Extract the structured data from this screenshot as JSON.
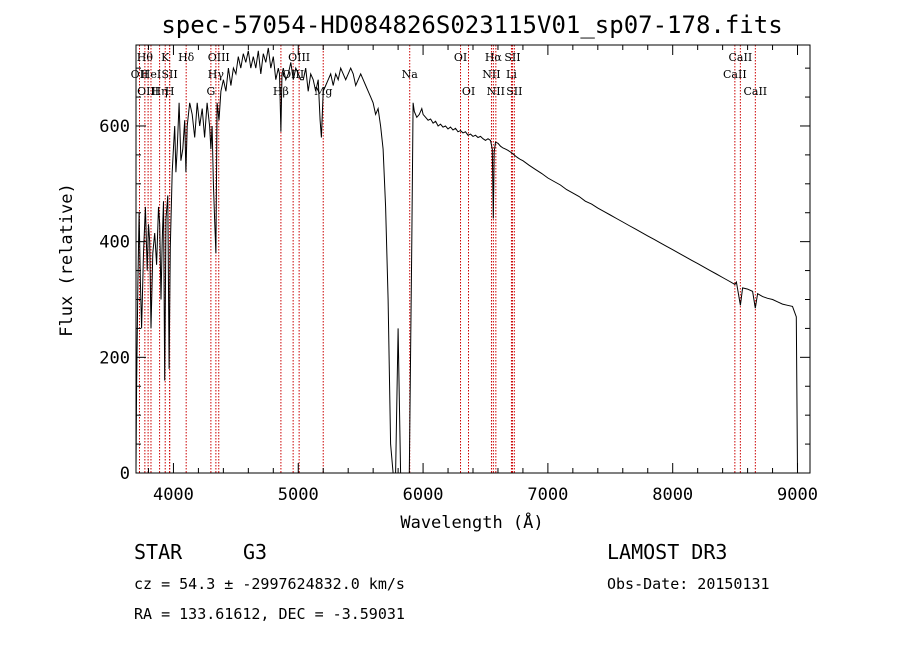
{
  "chart_data": {
    "type": "line",
    "title": "spec-57054-HD084826S023115V01_sp07-178.fits",
    "xlabel": "Wavelength (Å)",
    "ylabel": "Flux (relative)",
    "xlim": [
      3700,
      9100
    ],
    "ylim": [
      0,
      740
    ],
    "xticks": [
      4000,
      5000,
      6000,
      7000,
      8000,
      9000
    ],
    "yticks": [
      0,
      200,
      400,
      600
    ],
    "grid": false,
    "series": [
      {
        "name": "flux",
        "points": [
          [
            3700,
            5
          ],
          [
            3705,
            150
          ],
          [
            3715,
            330
          ],
          [
            3725,
            450
          ],
          [
            3735,
            330
          ],
          [
            3745,
            250
          ],
          [
            3760,
            380
          ],
          [
            3775,
            460
          ],
          [
            3790,
            350
          ],
          [
            3800,
            430
          ],
          [
            3810,
            400
          ],
          [
            3820,
            250
          ],
          [
            3835,
            380
          ],
          [
            3850,
            415
          ],
          [
            3865,
            360
          ],
          [
            3880,
            460
          ],
          [
            3890,
            430
          ],
          [
            3900,
            300
          ],
          [
            3910,
            400
          ],
          [
            3920,
            470
          ],
          [
            3930,
            160
          ],
          [
            3940,
            440
          ],
          [
            3955,
            480
          ],
          [
            3965,
            180
          ],
          [
            3975,
            390
          ],
          [
            3990,
            520
          ],
          [
            4000,
            560
          ],
          [
            4010,
            600
          ],
          [
            4020,
            520
          ],
          [
            4030,
            560
          ],
          [
            4045,
            640
          ],
          [
            4060,
            540
          ],
          [
            4075,
            560
          ],
          [
            4090,
            610
          ],
          [
            4100,
            520
          ],
          [
            4110,
            600
          ],
          [
            4130,
            640
          ],
          [
            4150,
            620
          ],
          [
            4170,
            580
          ],
          [
            4190,
            640
          ],
          [
            4210,
            600
          ],
          [
            4230,
            630
          ],
          [
            4250,
            580
          ],
          [
            4270,
            640
          ],
          [
            4290,
            600
          ],
          [
            4300,
            560
          ],
          [
            4310,
            600
          ],
          [
            4320,
            500
          ],
          [
            4330,
            440
          ],
          [
            4340,
            380
          ],
          [
            4350,
            640
          ],
          [
            4365,
            610
          ],
          [
            4380,
            660
          ],
          [
            4400,
            680
          ],
          [
            4420,
            660
          ],
          [
            4440,
            700
          ],
          [
            4460,
            670
          ],
          [
            4480,
            700
          ],
          [
            4500,
            690
          ],
          [
            4520,
            720
          ],
          [
            4540,
            700
          ],
          [
            4560,
            725
          ],
          [
            4580,
            710
          ],
          [
            4600,
            730
          ],
          [
            4620,
            700
          ],
          [
            4640,
            720
          ],
          [
            4660,
            700
          ],
          [
            4680,
            730
          ],
          [
            4700,
            690
          ],
          [
            4720,
            725
          ],
          [
            4740,
            710
          ],
          [
            4760,
            735
          ],
          [
            4780,
            700
          ],
          [
            4800,
            720
          ],
          [
            4820,
            680
          ],
          [
            4840,
            700
          ],
          [
            4850,
            690
          ],
          [
            4861,
            590
          ],
          [
            4870,
            690
          ],
          [
            4880,
            700
          ],
          [
            4900,
            680
          ],
          [
            4920,
            690
          ],
          [
            4940,
            710
          ],
          [
            4960,
            680
          ],
          [
            4980,
            700
          ],
          [
            5000,
            690
          ],
          [
            5020,
            680
          ],
          [
            5040,
            680
          ],
          [
            5060,
            700
          ],
          [
            5080,
            660
          ],
          [
            5100,
            690
          ],
          [
            5120,
            680
          ],
          [
            5140,
            660
          ],
          [
            5160,
            680
          ],
          [
            5175,
            610
          ],
          [
            5185,
            580
          ],
          [
            5200,
            660
          ],
          [
            5220,
            670
          ],
          [
            5240,
            680
          ],
          [
            5260,
            690
          ],
          [
            5280,
            670
          ],
          [
            5300,
            690
          ],
          [
            5320,
            680
          ],
          [
            5340,
            700
          ],
          [
            5360,
            690
          ],
          [
            5380,
            680
          ],
          [
            5400,
            690
          ],
          [
            5420,
            700
          ],
          [
            5440,
            690
          ],
          [
            5460,
            670
          ],
          [
            5480,
            680
          ],
          [
            5500,
            690
          ],
          [
            5520,
            680
          ],
          [
            5540,
            670
          ],
          [
            5560,
            660
          ],
          [
            5580,
            650
          ],
          [
            5600,
            640
          ],
          [
            5620,
            620
          ],
          [
            5640,
            630
          ],
          [
            5660,
            600
          ],
          [
            5680,
            560
          ],
          [
            5700,
            460
          ],
          [
            5720,
            300
          ],
          [
            5740,
            50
          ],
          [
            5760,
            0
          ],
          [
            5780,
            0
          ],
          [
            5800,
            250
          ],
          [
            5820,
            0
          ],
          [
            5830,
            0
          ],
          [
            5850,
            0
          ],
          [
            5870,
            0
          ],
          [
            5890,
            0
          ],
          [
            5910,
            400
          ],
          [
            5920,
            640
          ],
          [
            5930,
            625
          ],
          [
            5950,
            615
          ],
          [
            5970,
            620
          ],
          [
            5990,
            630
          ],
          [
            6000,
            620
          ],
          [
            6020,
            615
          ],
          [
            6040,
            610
          ],
          [
            6060,
            612
          ],
          [
            6080,
            605
          ],
          [
            6100,
            608
          ],
          [
            6120,
            600
          ],
          [
            6140,
            603
          ],
          [
            6160,
            598
          ],
          [
            6180,
            600
          ],
          [
            6200,
            595
          ],
          [
            6220,
            598
          ],
          [
            6240,
            593
          ],
          [
            6260,
            596
          ],
          [
            6280,
            590
          ],
          [
            6300,
            592
          ],
          [
            6320,
            588
          ],
          [
            6340,
            590
          ],
          [
            6360,
            584
          ],
          [
            6380,
            586
          ],
          [
            6400,
            582
          ],
          [
            6420,
            584
          ],
          [
            6440,
            580
          ],
          [
            6460,
            582
          ],
          [
            6480,
            578
          ],
          [
            6500,
            575
          ],
          [
            6520,
            578
          ],
          [
            6540,
            575
          ],
          [
            6555,
            560
          ],
          [
            6563,
            440
          ],
          [
            6570,
            555
          ],
          [
            6580,
            572
          ],
          [
            6600,
            570
          ],
          [
            6620,
            565
          ],
          [
            6640,
            562
          ],
          [
            6660,
            560
          ],
          [
            6680,
            558
          ],
          [
            6700,
            555
          ],
          [
            6720,
            552
          ],
          [
            6740,
            548
          ],
          [
            6760,
            545
          ],
          [
            6780,
            542
          ],
          [
            6800,
            540
          ],
          [
            6850,
            532
          ],
          [
            6900,
            525
          ],
          [
            6950,
            518
          ],
          [
            7000,
            510
          ],
          [
            7050,
            504
          ],
          [
            7100,
            498
          ],
          [
            7150,
            490
          ],
          [
            7200,
            484
          ],
          [
            7250,
            478
          ],
          [
            7300,
            470
          ],
          [
            7350,
            465
          ],
          [
            7400,
            458
          ],
          [
            7450,
            452
          ],
          [
            7500,
            446
          ],
          [
            7550,
            440
          ],
          [
            7600,
            434
          ],
          [
            7650,
            428
          ],
          [
            7700,
            422
          ],
          [
            7750,
            416
          ],
          [
            7800,
            410
          ],
          [
            7850,
            404
          ],
          [
            7900,
            398
          ],
          [
            7950,
            392
          ],
          [
            8000,
            386
          ],
          [
            8050,
            380
          ],
          [
            8100,
            374
          ],
          [
            8150,
            368
          ],
          [
            8200,
            362
          ],
          [
            8250,
            356
          ],
          [
            8300,
            350
          ],
          [
            8350,
            344
          ],
          [
            8400,
            338
          ],
          [
            8450,
            332
          ],
          [
            8498,
            326
          ],
          [
            8510,
            330
          ],
          [
            8542,
            290
          ],
          [
            8560,
            320
          ],
          [
            8600,
            318
          ],
          [
            8640,
            314
          ],
          [
            8662,
            285
          ],
          [
            8680,
            310
          ],
          [
            8720,
            305
          ],
          [
            8760,
            302
          ],
          [
            8800,
            300
          ],
          [
            8840,
            296
          ],
          [
            8880,
            292
          ],
          [
            8920,
            290
          ],
          [
            8960,
            288
          ],
          [
            8990,
            270
          ],
          [
            9000,
            0
          ]
        ]
      }
    ],
    "line_markers": [
      {
        "wl": 3728,
        "label": "OII",
        "row": 1
      },
      {
        "wl": 3771,
        "label": "Hθ",
        "row": 0
      },
      {
        "wl": 3797,
        "label": "OIII",
        "row": 2
      },
      {
        "wl": 3820,
        "label": "HeI",
        "row": 1
      },
      {
        "wl": 3889,
        "label": "Hη",
        "row": 2
      },
      {
        "wl": 3934,
        "label": "K",
        "row": 0
      },
      {
        "wl": 3969,
        "label": "SII",
        "row": 1
      },
      {
        "wl": 3970,
        "label": "H",
        "row": 2
      },
      {
        "wl": 4102,
        "label": "Hδ",
        "row": 0
      },
      {
        "wl": 4300,
        "label": "G",
        "row": 2
      },
      {
        "wl": 4340,
        "label": "Hγ",
        "row": 1
      },
      {
        "wl": 4363,
        "label": "OIII",
        "row": 0
      },
      {
        "wl": 4861,
        "label": "Hβ",
        "row": 2
      },
      {
        "wl": 4959,
        "label": "OIII",
        "row": 1
      },
      {
        "wl": 5007,
        "label": "OIII",
        "row": 0
      },
      {
        "wl": 5200,
        "label": "Mg",
        "row": 2
      },
      {
        "wl": 5893,
        "label": "Na",
        "row": 1
      },
      {
        "wl": 6300,
        "label": "OI",
        "row": 0
      },
      {
        "wl": 6364,
        "label": "OI",
        "row": 2
      },
      {
        "wl": 6548,
        "label": "NII",
        "row": 1
      },
      {
        "wl": 6563,
        "label": "Hα",
        "row": 0
      },
      {
        "wl": 6583,
        "label": "NII",
        "row": 2
      },
      {
        "wl": 6708,
        "label": "Li",
        "row": 1
      },
      {
        "wl": 6716,
        "label": "SII",
        "row": 0
      },
      {
        "wl": 6731,
        "label": "SII",
        "row": 2
      },
      {
        "wl": 8498,
        "label": "CaII",
        "row": 1
      },
      {
        "wl": 8542,
        "label": "CaII",
        "row": 0
      },
      {
        "wl": 8662,
        "label": "CaII",
        "row": 2
      }
    ],
    "marker_color": "#cc0000",
    "line_color": "#000000"
  },
  "info": {
    "object_type": "STAR",
    "subclass": "G3",
    "survey": "LAMOST DR3",
    "cz_text": "cz = 54.3 ± -2997624832.0 km/s",
    "obs_date_text": "Obs-Date: 20150131",
    "radec_text": "RA = 133.61612, DEC =  -3.59031"
  }
}
